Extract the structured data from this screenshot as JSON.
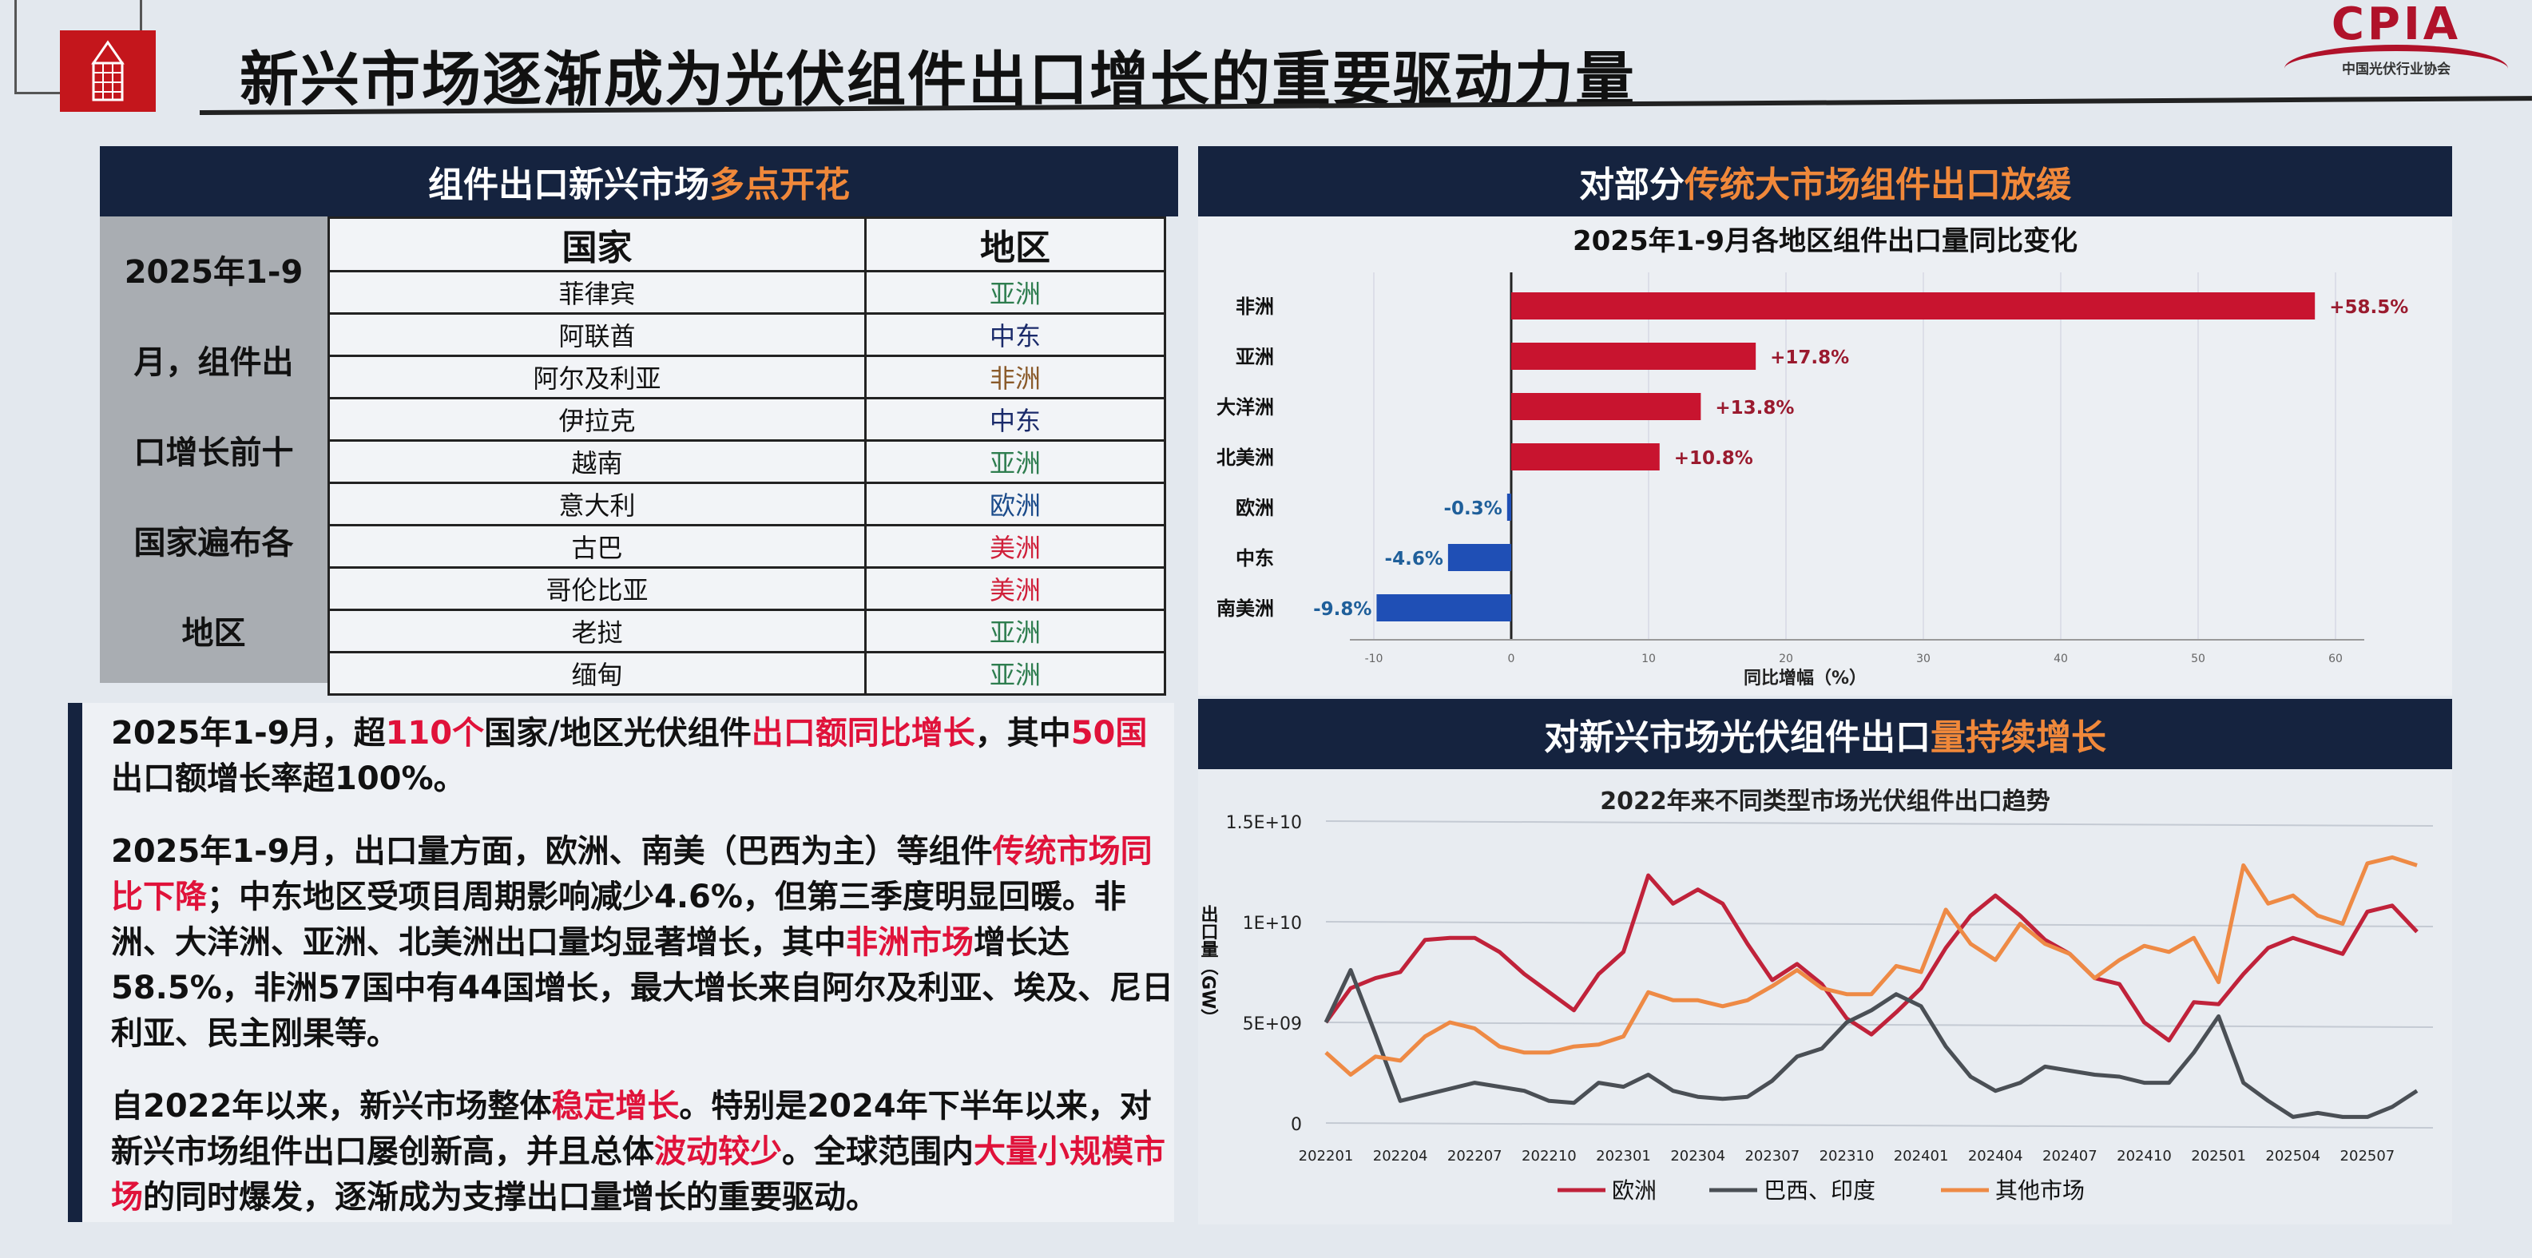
{
  "header": {
    "title": "新兴市场逐渐成为光伏组件出口增长的重要驱动力量",
    "logo_text": "CPIA",
    "logo_subtitle": "中国光伏行业协会"
  },
  "table_panel": {
    "title_plain": "组件出口新兴市场",
    "title_highlight": "多点开花",
    "side_lines": [
      "2025年1-9",
      "月，组件出",
      "口增长前十",
      "国家遍布各",
      "地区"
    ],
    "columns": [
      "国家",
      "地区"
    ],
    "rows": [
      {
        "country": "菲律宾",
        "region": "亚洲",
        "color": "#2e7d4f"
      },
      {
        "country": "阿联酋",
        "region": "中东",
        "color": "#1a2a6a"
      },
      {
        "country": "阿尔及利亚",
        "region": "非洲",
        "color": "#8a5a2a"
      },
      {
        "country": "伊拉克",
        "region": "中东",
        "color": "#1a2a6a"
      },
      {
        "country": "越南",
        "region": "亚洲",
        "color": "#2e7d4f"
      },
      {
        "country": "意大利",
        "region": "欧洲",
        "color": "#1a4a8a"
      },
      {
        "country": "古巴",
        "region": "美洲",
        "color": "#d0203a"
      },
      {
        "country": "哥伦比亚",
        "region": "美洲",
        "color": "#d0203a"
      },
      {
        "country": "老挝",
        "region": "亚洲",
        "color": "#2e7d4f"
      },
      {
        "country": "缅甸",
        "region": "亚洲",
        "color": "#2e7d4f"
      }
    ]
  },
  "text_box": {
    "paragraphs": [
      [
        {
          "t": "2025年1-9月，超"
        },
        {
          "t": "110个",
          "hl": true
        },
        {
          "t": "国家/地区光伏组件"
        },
        {
          "t": "出口额同比增长",
          "hl": true
        },
        {
          "t": "，其中"
        },
        {
          "t": "50国",
          "hl": true
        },
        {
          "t": "出口额增长率超100%。"
        }
      ],
      [
        {
          "t": "2025年1-9月，出口量方面，欧洲、南美（巴西为主）等组件"
        },
        {
          "t": "传统市场同比下降",
          "hl": true
        },
        {
          "t": "；中东地区受项目周期影响减少4.6%，但第三季度明显回暖。非洲、大洋洲、亚洲、北美洲出口量均显著增长，其中"
        },
        {
          "t": "非洲市场",
          "hl": true
        },
        {
          "t": "增长达58.5%，非洲57国中有44国增长，最大增长来自阿尔及利亚、埃及、尼日利亚、民主刚果等。"
        }
      ],
      [
        {
          "t": "自2022年以来，新兴市场整体"
        },
        {
          "t": "稳定增长",
          "hl": true
        },
        {
          "t": "。特别是2024年下半年以来，对新兴市场组件出口屡创新高，并且总体"
        },
        {
          "t": "波动较少",
          "hl": true
        },
        {
          "t": "。全球范围内"
        },
        {
          "t": "大量小规模市场",
          "hl": true
        },
        {
          "t": "的同时爆发，逐渐成为支撑出口量增长的重要驱动。"
        }
      ]
    ]
  },
  "bar_panel": {
    "title_plain1": "对部分",
    "title_highlight": "传统大市场组件出口放缓"
  },
  "line_panel": {
    "title_plain1": "对新兴市场光伏组件出口",
    "title_highlight1": "量",
    "title_highlight2": "持续增长"
  },
  "chart_data": [
    {
      "type": "bar",
      "orientation": "horizontal",
      "title": "2025年1-9月各地区组件出口量同比变化",
      "xlabel": "同比增幅（%）",
      "xlim": [
        -10,
        60
      ],
      "xticks": [
        -10,
        0,
        10,
        20,
        30,
        40,
        50,
        60
      ],
      "grid": true,
      "categories": [
        "非洲",
        "亚洲",
        "大洋洲",
        "北美洲",
        "欧洲",
        "中东",
        "南美洲"
      ],
      "values": [
        58.5,
        17.8,
        13.8,
        10.8,
        -0.3,
        -4.6,
        -9.8
      ],
      "data_labels": [
        "+58.5%",
        "+17.8%",
        "+13.8%",
        "+10.8%",
        "-0.3%",
        "-4.6%",
        "-9.8%"
      ],
      "colors": {
        "positive": "#c8142f",
        "negative": "#1f4fb5"
      }
    },
    {
      "type": "line",
      "title": "2022年来不同类型市场光伏组件出口趋势",
      "ylabel": "出口量（GW）",
      "ylim": [
        0,
        15000000000
      ],
      "yticks": [
        "0",
        "5E+09",
        "1E+10",
        "1.5E+10"
      ],
      "ytick_values": [
        0,
        5000000000,
        10000000000,
        15000000000
      ],
      "xticks": [
        "202201",
        "202204",
        "202207",
        "202210",
        "202301",
        "202304",
        "202307",
        "202310",
        "202401",
        "202404",
        "202407",
        "202410",
        "202501",
        "202504",
        "202507"
      ],
      "x_start": "202201",
      "x_end": "202509",
      "legend": "bottom",
      "value_unit": "1E+09",
      "series": [
        {
          "name": "欧洲",
          "color": "#c0223a",
          "values": [
            5.0,
            6.7,
            7.2,
            7.5,
            9.1,
            9.2,
            9.2,
            8.5,
            7.4,
            6.5,
            5.6,
            7.4,
            8.5,
            12.3,
            10.9,
            11.6,
            10.9,
            8.9,
            7.1,
            7.9,
            6.9,
            5.2,
            4.4,
            5.5,
            6.7,
            8.7,
            10.3,
            11.3,
            10.3,
            9.1,
            8.4,
            7.2,
            6.9,
            5.0,
            4.1,
            6.0,
            5.9,
            7.4,
            8.7,
            9.2,
            8.8,
            8.4,
            10.5,
            10.8,
            9.5
          ]
        },
        {
          "name": "巴西、印度",
          "color": "#4a4f55",
          "values": [
            5.0,
            7.6,
            4.4,
            1.1,
            1.4,
            1.7,
            2.0,
            1.8,
            1.6,
            1.1,
            1.0,
            2.0,
            1.8,
            2.4,
            1.6,
            1.3,
            1.2,
            1.3,
            2.1,
            3.3,
            3.7,
            5.0,
            5.6,
            6.4,
            5.8,
            3.8,
            2.3,
            1.6,
            2.0,
            2.8,
            2.6,
            2.4,
            2.3,
            2.0,
            2.0,
            3.5,
            5.3,
            2.0,
            1.1,
            0.3,
            0.5,
            0.3,
            0.3,
            0.8,
            1.6
          ]
        },
        {
          "name": "其他市场",
          "color": "#ee8a45",
          "values": [
            3.5,
            2.4,
            3.3,
            3.1,
            4.3,
            5.0,
            4.7,
            3.8,
            3.5,
            3.5,
            3.8,
            3.9,
            4.3,
            6.5,
            6.1,
            6.1,
            5.8,
            6.1,
            6.8,
            7.6,
            6.7,
            6.4,
            6.4,
            7.8,
            7.5,
            10.6,
            8.9,
            8.1,
            9.9,
            8.9,
            8.4,
            7.2,
            8.1,
            8.8,
            8.5,
            9.2,
            7.0,
            12.8,
            10.9,
            11.3,
            10.3,
            9.9,
            12.9,
            13.2,
            12.8
          ]
        }
      ]
    }
  ]
}
